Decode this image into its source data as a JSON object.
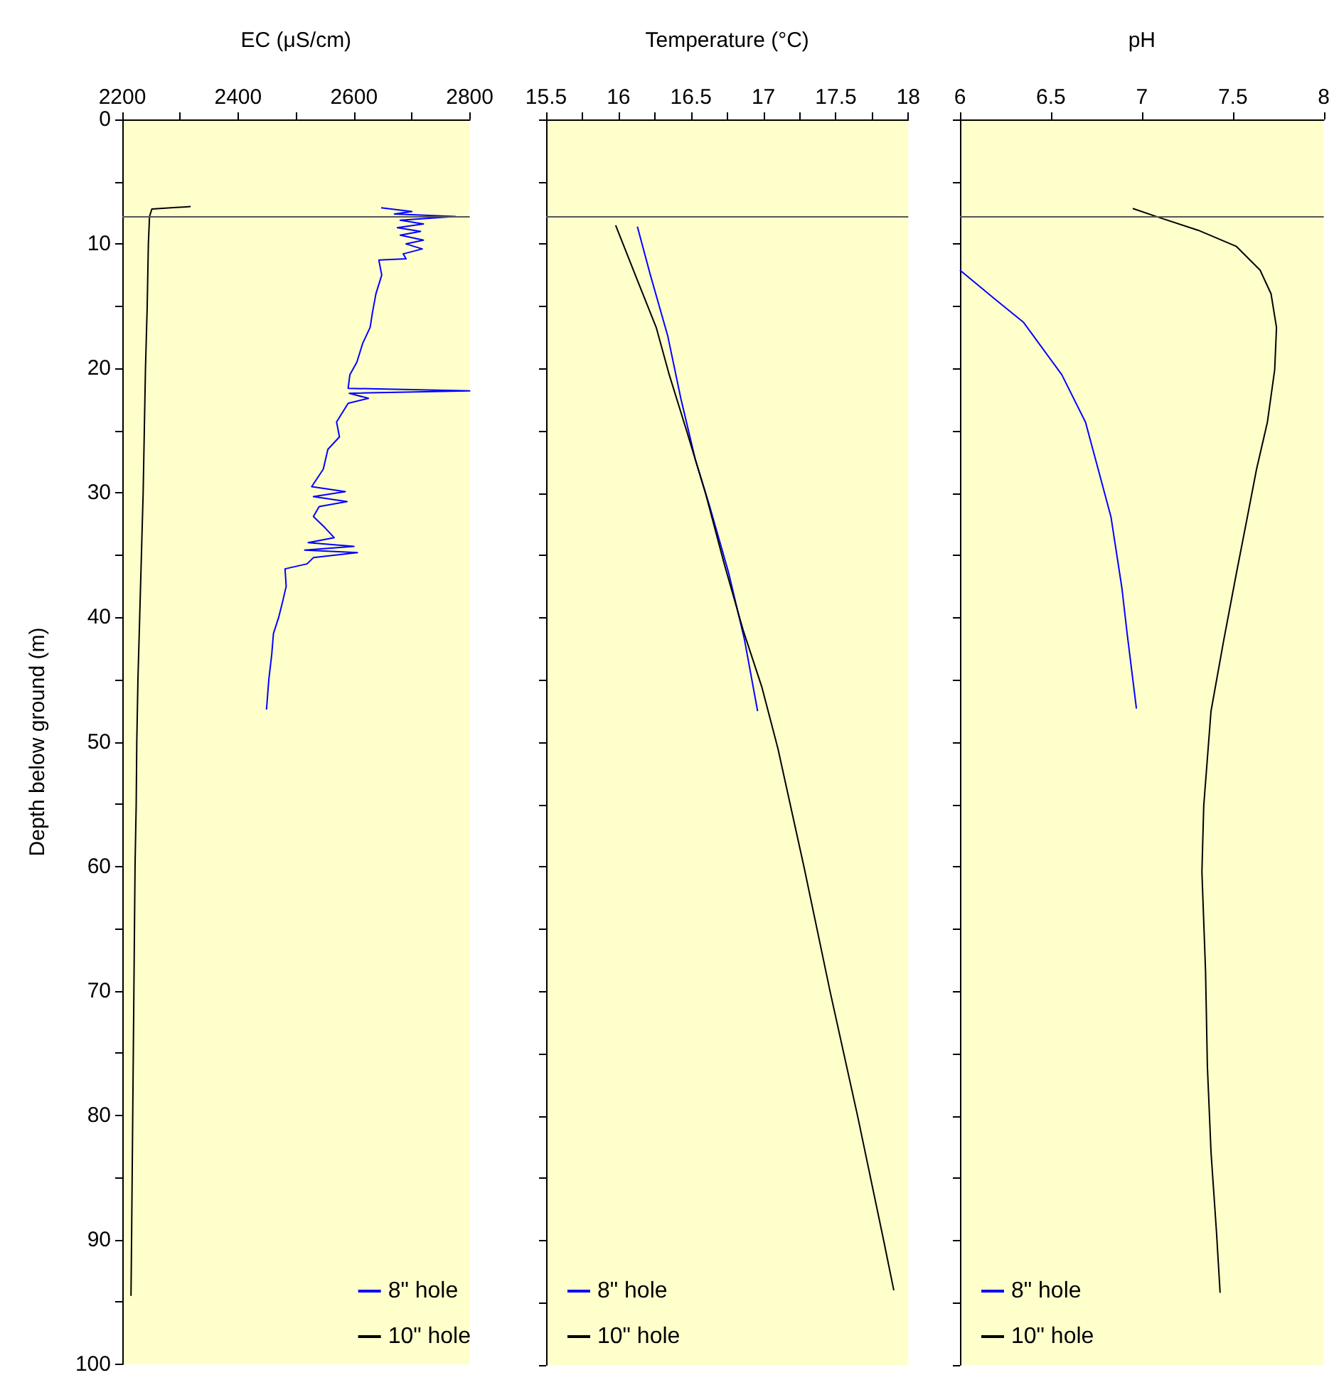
{
  "chart_data": [
    {
      "type": "line",
      "xlabel": "EC (μS/cm)",
      "ylabel": "Depth below ground (m)",
      "xlim": [
        2200,
        2800
      ],
      "xticks": [
        2200,
        {
          "value": 2300,
          "label": null
        },
        2400,
        {
          "value": 2500,
          "label": null
        },
        2600,
        {
          "value": 2700,
          "label": null
        },
        2800
      ],
      "ylim": [
        100,
        0
      ],
      "yticks": [
        0,
        {
          "value": 5,
          "label": null
        },
        10,
        {
          "value": 15,
          "label": null
        },
        20,
        {
          "value": 25,
          "label": null
        },
        30,
        {
          "value": 35,
          "label": null
        },
        40,
        {
          "value": 45,
          "label": null
        },
        50,
        {
          "value": 55,
          "label": null
        },
        60,
        {
          "value": 65,
          "label": null
        },
        70,
        {
          "value": 75,
          "label": null
        },
        80,
        {
          "value": 85,
          "label": null
        },
        90,
        {
          "value": 95,
          "label": null
        },
        100
      ],
      "grid": false,
      "legend": "bottom right",
      "marker": "none",
      "ref_lines": [
        {
          "axis": "y",
          "value": 7.8,
          "color": "#555555"
        }
      ],
      "series": [
        {
          "name": "8\" hole",
          "color": "#0000ff",
          "x": [
            2647,
            2700,
            2670,
            2775,
            2680,
            2720,
            2675,
            2715,
            2680,
            2720,
            2690,
            2718,
            2685,
            2690,
            2643,
            2648,
            2638,
            2632,
            2628,
            2615,
            2605,
            2593,
            2590,
            2800,
            2592,
            2625,
            2590,
            2570,
            2575,
            2555,
            2547,
            2527,
            2585,
            2530,
            2588,
            2540,
            2530,
            2550,
            2566,
            2521,
            2600,
            2515,
            2606,
            2530,
            2519,
            2481,
            2483,
            2477,
            2470,
            2461,
            2458,
            2453,
            2449
          ],
          "values": [
            7.1,
            7.4,
            7.6,
            7.8,
            8.1,
            8.4,
            8.7,
            9.0,
            9.3,
            9.7,
            10.0,
            10.4,
            10.8,
            11.2,
            11.3,
            12.5,
            14,
            15.5,
            16.7,
            18,
            19.5,
            20.5,
            21.6,
            21.8,
            22.0,
            22.4,
            22.8,
            24.3,
            25.5,
            26.5,
            28.1,
            29.5,
            29.9,
            30.3,
            30.7,
            31.1,
            31.9,
            32.8,
            33.6,
            34.0,
            34.3,
            34.6,
            34.8,
            35.2,
            35.7,
            36.1,
            37.5,
            38.7,
            40,
            41.3,
            43,
            45,
            47.4
          ]
        },
        {
          "name": "10\" hole",
          "color": "#000000",
          "x": [
            2318,
            2251,
            2247,
            2245,
            2243,
            2240,
            2238,
            2236,
            2233,
            2230,
            2227,
            2225,
            2224,
            2222,
            2221,
            2220,
            2219,
            2218,
            2217,
            2216,
            2215
          ],
          "values": [
            7.0,
            7.2,
            7.8,
            10,
            15,
            20,
            25,
            30,
            35,
            40,
            45,
            50,
            55,
            60,
            65,
            70,
            75,
            80,
            85,
            90,
            94.5
          ]
        }
      ]
    },
    {
      "type": "line",
      "xlabel": "Temperature (°C)",
      "xlim": [
        15.5,
        18
      ],
      "xticks": [
        15.5,
        {
          "value": 15.75,
          "label": null
        },
        16,
        {
          "value": 16.25,
          "label": null
        },
        16.5,
        {
          "value": 16.75,
          "label": null
        },
        17,
        {
          "value": 17.25,
          "label": null
        },
        17.5,
        {
          "value": 17.75,
          "label": null
        },
        18
      ],
      "ylim": [
        100,
        0
      ],
      "yticks": [
        0,
        {
          "value": 5,
          "label": null
        },
        10,
        {
          "value": 15,
          "label": null
        },
        20,
        {
          "value": 25,
          "label": null
        },
        30,
        {
          "value": 35,
          "label": null
        },
        40,
        {
          "value": 45,
          "label": null
        },
        50,
        {
          "value": 55,
          "label": null
        },
        60,
        {
          "value": 65,
          "label": null
        },
        70,
        {
          "value": 75,
          "label": null
        },
        80,
        {
          "value": 85,
          "label": null
        },
        90,
        {
          "value": 95,
          "label": null
        },
        100
      ],
      "tick_labels": "x",
      "grid": false,
      "legend": "bottom left",
      "marker": "none",
      "ref_lines": [
        {
          "axis": "y",
          "value": 7.8,
          "color": "#555555"
        }
      ],
      "series": [
        {
          "name": "8\" hole",
          "color": "#0000ff",
          "x": [
            16.13,
            16.22,
            16.34,
            16.43,
            16.53,
            16.63,
            16.76,
            16.87,
            16.96
          ],
          "values": [
            8.6,
            12.5,
            17.4,
            22.4,
            27.3,
            31.1,
            36.4,
            41.8,
            47.5
          ]
        },
        {
          "name": "10\" hole",
          "color": "#000000",
          "x": [
            15.98,
            16.13,
            16.26,
            16.35,
            16.47,
            16.6,
            16.73,
            16.86,
            16.99,
            17.1,
            17.28,
            17.46,
            17.65,
            17.83,
            17.9
          ],
          "values": [
            8.5,
            12.9,
            16.7,
            20.5,
            25.0,
            30.0,
            35.7,
            41.0,
            45.6,
            50.5,
            60,
            70,
            80,
            90,
            94
          ]
        }
      ]
    },
    {
      "type": "line",
      "xlabel": "pH",
      "xlim": [
        6,
        8
      ],
      "xticks": [
        6,
        6.5,
        7,
        7.5,
        8
      ],
      "ylim": [
        100,
        0
      ],
      "yticks": [
        0,
        {
          "value": 5,
          "label": null
        },
        10,
        {
          "value": 15,
          "label": null
        },
        20,
        {
          "value": 25,
          "label": null
        },
        30,
        {
          "value": 35,
          "label": null
        },
        40,
        {
          "value": 45,
          "label": null
        },
        50,
        {
          "value": 55,
          "label": null
        },
        60,
        {
          "value": 65,
          "label": null
        },
        70,
        {
          "value": 75,
          "label": null
        },
        80,
        {
          "value": 85,
          "label": null
        },
        90,
        {
          "value": 95,
          "label": null
        },
        100
      ],
      "tick_labels": "x",
      "grid": false,
      "legend": "bottom left",
      "marker": "none",
      "ref_lines": [
        {
          "axis": "y",
          "value": 7.8,
          "color": "#555555"
        }
      ],
      "series": [
        {
          "name": "8\" hole",
          "color": "#0000ff",
          "x": [
            6.0,
            6.19,
            6.35,
            6.56,
            6.69,
            6.76,
            6.83,
            6.89,
            6.92,
            6.97
          ],
          "values": [
            12.1,
            14.4,
            16.3,
            20.5,
            24.3,
            28.1,
            31.9,
            37.6,
            41.4,
            47.3
          ]
        },
        {
          "name": "10\" hole",
          "color": "#000000",
          "x": [
            6.95,
            7.08,
            7.31,
            7.52,
            7.65,
            7.71,
            7.74,
            7.73,
            7.69,
            7.63,
            7.58,
            7.52,
            7.45,
            7.38,
            7.34,
            7.33,
            7.35,
            7.36,
            7.38,
            7.41,
            7.43
          ],
          "values": [
            7.15,
            7.8,
            8.9,
            10.2,
            12.1,
            14.0,
            16.7,
            20.1,
            24.3,
            28.1,
            31.9,
            36.4,
            41.8,
            47.5,
            55.1,
            60.4,
            68.4,
            76.0,
            82.9,
            89.3,
            94.2
          ]
        }
      ]
    }
  ]
}
